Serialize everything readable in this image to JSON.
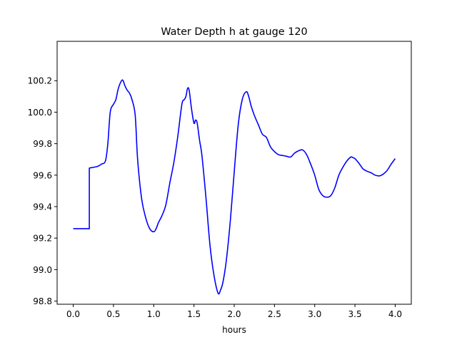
{
  "chart_data": {
    "type": "line",
    "title": "Water Depth h at gauge 120",
    "xlabel": "hours",
    "ylabel": "",
    "xlim": [
      -0.2,
      4.2
    ],
    "ylim": [
      98.78,
      100.45
    ],
    "x_ticks": [
      {
        "value": 0.0,
        "label": "0.0"
      },
      {
        "value": 0.5,
        "label": "0.5"
      },
      {
        "value": 1.0,
        "label": "1.0"
      },
      {
        "value": 1.5,
        "label": "1.5"
      },
      {
        "value": 2.0,
        "label": "2.0"
      },
      {
        "value": 2.5,
        "label": "2.5"
      },
      {
        "value": 3.0,
        "label": "3.0"
      },
      {
        "value": 3.5,
        "label": "3.5"
      },
      {
        "value": 4.0,
        "label": "4.0"
      }
    ],
    "y_ticks": [
      {
        "value": 98.8,
        "label": "98.8"
      },
      {
        "value": 99.0,
        "label": "99.0"
      },
      {
        "value": 99.2,
        "label": "99.2"
      },
      {
        "value": 99.4,
        "label": "99.4"
      },
      {
        "value": 99.6,
        "label": "99.6"
      },
      {
        "value": 99.8,
        "label": "99.8"
      },
      {
        "value": 100.0,
        "label": "100.0"
      },
      {
        "value": 100.2,
        "label": "100.2"
      }
    ],
    "grid": false,
    "series": [
      {
        "name": "",
        "color": "#0000ff",
        "x": [
          0.0,
          0.1,
          0.2,
          0.2,
          0.3,
          0.35,
          0.4,
          0.43,
          0.46,
          0.5,
          0.53,
          0.56,
          0.6,
          0.62,
          0.64,
          0.67,
          0.7,
          0.73,
          0.77,
          0.8,
          0.85,
          0.9,
          0.95,
          1.0,
          1.03,
          1.06,
          1.1,
          1.15,
          1.2,
          1.25,
          1.3,
          1.35,
          1.38,
          1.4,
          1.42,
          1.44,
          1.47,
          1.5,
          1.52,
          1.54,
          1.57,
          1.6,
          1.65,
          1.7,
          1.75,
          1.8,
          1.83,
          1.86,
          1.9,
          1.95,
          2.0,
          2.05,
          2.1,
          2.15,
          2.18,
          2.21,
          2.25,
          2.3,
          2.35,
          2.4,
          2.45,
          2.5,
          2.55,
          2.6,
          2.65,
          2.7,
          2.75,
          2.8,
          2.85,
          2.9,
          2.95,
          3.0,
          3.05,
          3.1,
          3.15,
          3.2,
          3.25,
          3.3,
          3.35,
          3.4,
          3.45,
          3.48,
          3.5,
          3.55,
          3.6,
          3.65,
          3.7,
          3.75,
          3.8,
          3.83,
          3.86,
          3.9,
          3.95,
          4.0
        ],
        "y": [
          99.26,
          99.26,
          99.26,
          99.645,
          99.655,
          99.67,
          99.69,
          99.8,
          100.0,
          100.05,
          100.08,
          100.15,
          100.2,
          100.2,
          100.17,
          100.14,
          100.12,
          100.08,
          99.98,
          99.7,
          99.45,
          99.33,
          99.26,
          99.24,
          99.26,
          99.3,
          99.34,
          99.41,
          99.55,
          99.68,
          99.85,
          100.05,
          100.08,
          100.1,
          100.15,
          100.14,
          100.02,
          99.93,
          99.95,
          99.93,
          99.82,
          99.72,
          99.45,
          99.15,
          98.96,
          98.85,
          98.87,
          98.92,
          99.05,
          99.3,
          99.62,
          99.92,
          100.08,
          100.13,
          100.1,
          100.04,
          99.98,
          99.92,
          99.86,
          99.84,
          99.78,
          99.75,
          99.73,
          99.725,
          99.72,
          99.715,
          99.74,
          99.755,
          99.76,
          99.73,
          99.67,
          99.6,
          99.51,
          99.47,
          99.46,
          99.47,
          99.52,
          99.6,
          99.65,
          99.69,
          99.715,
          99.71,
          99.705,
          99.675,
          99.64,
          99.625,
          99.615,
          99.6,
          99.595,
          99.6,
          99.61,
          99.63,
          99.67,
          99.705
        ]
      }
    ]
  }
}
